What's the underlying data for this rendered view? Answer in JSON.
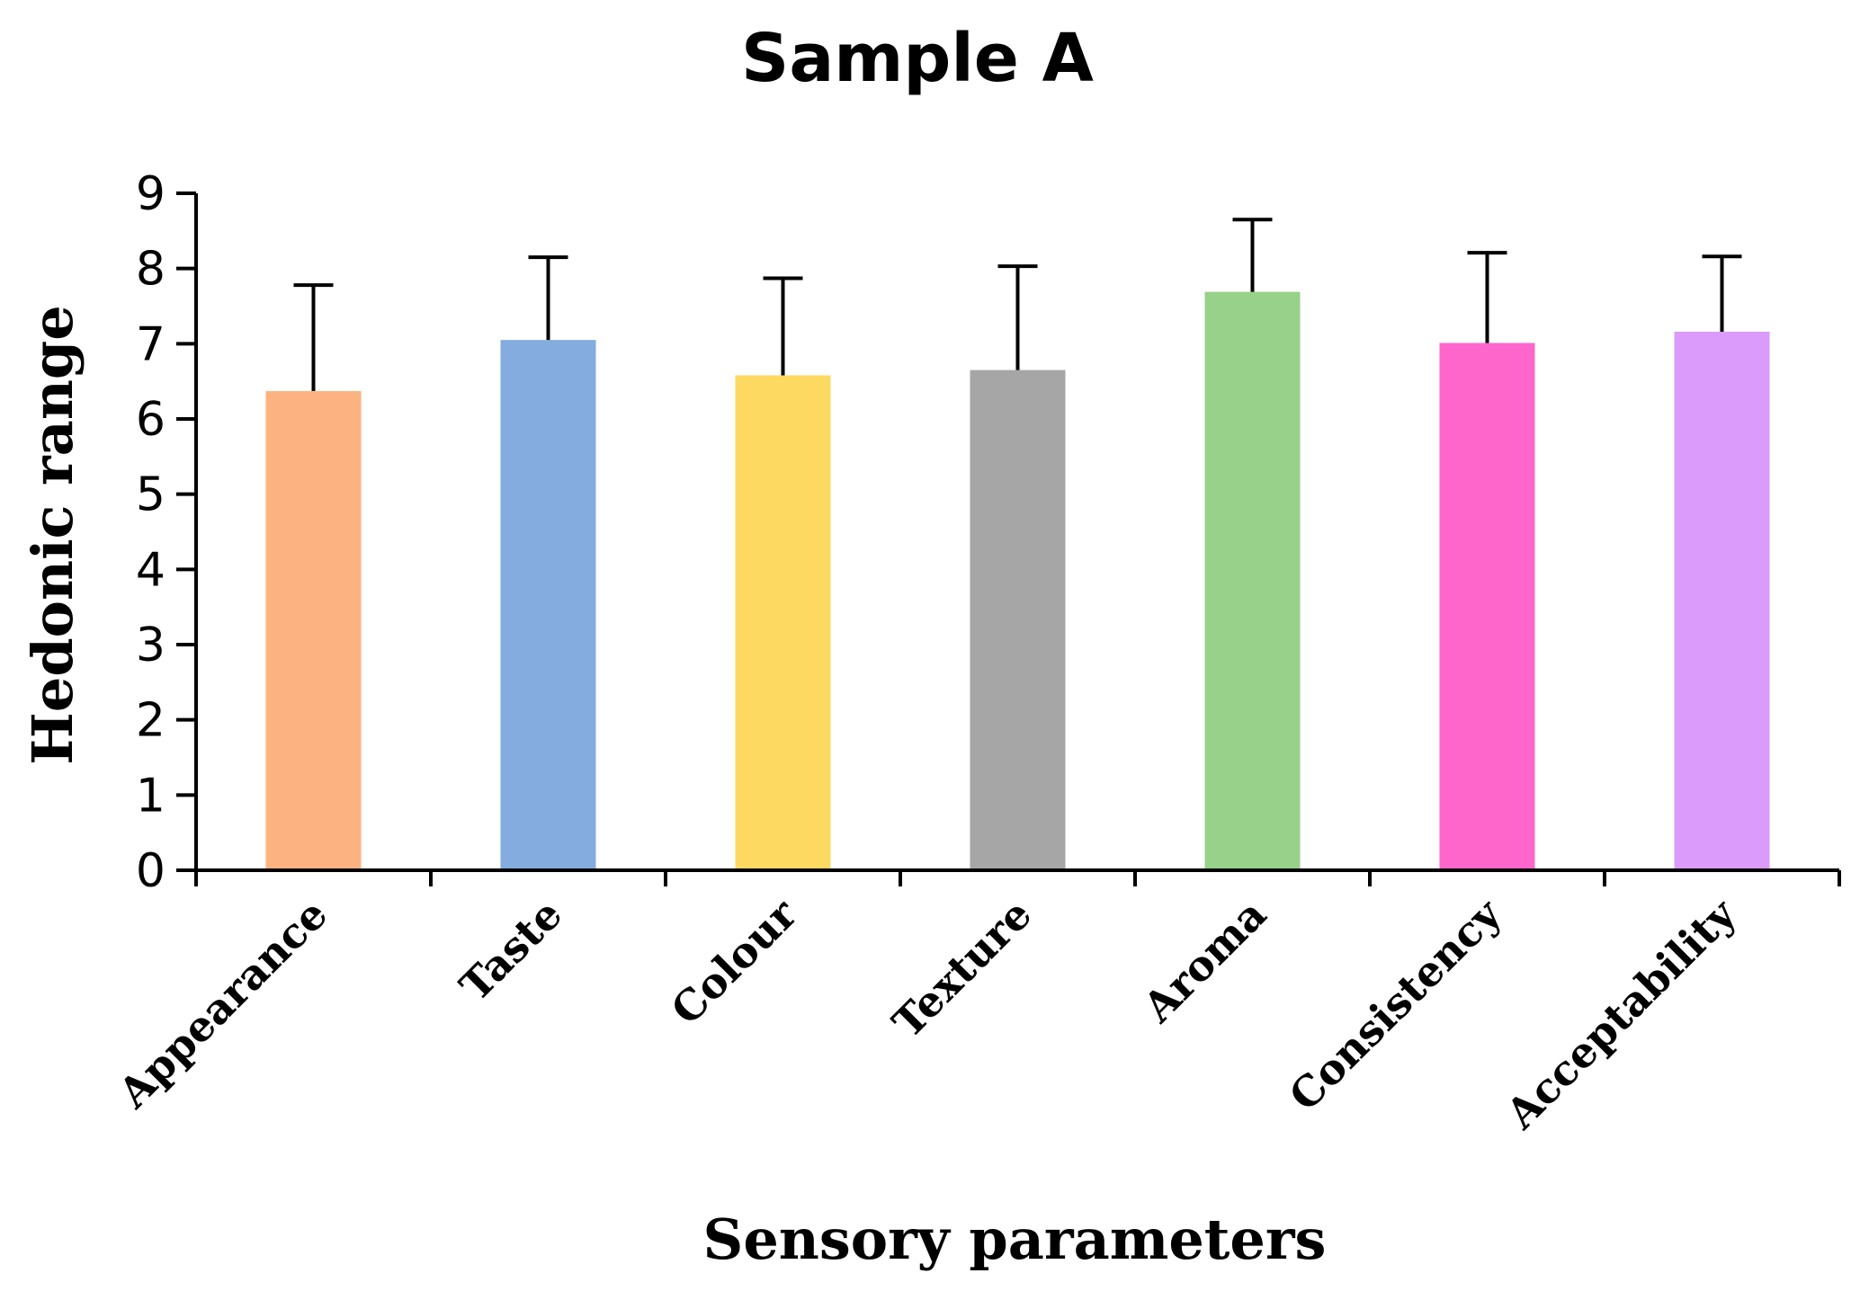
{
  "chart_data": {
    "type": "bar",
    "title": "Sample A",
    "xlabel": "Sensory parameters",
    "ylabel": "Hedonic range",
    "ylim": [
      0,
      9
    ],
    "yticks": [
      0,
      1,
      2,
      3,
      4,
      5,
      6,
      7,
      8,
      9
    ],
    "categories": [
      "Appearance",
      "Taste",
      "Colour",
      "Texture",
      "Aroma",
      "Consistency",
      "Acceptability"
    ],
    "values": [
      6.37,
      7.05,
      6.58,
      6.65,
      7.69,
      7.01,
      7.16
    ],
    "error_upper": [
      7.78,
      8.15,
      7.87,
      8.03,
      8.65,
      8.21,
      8.16
    ],
    "colors": [
      "#FDB381",
      "#84ACDE",
      "#FED961",
      "#A6A6A6",
      "#97D18A",
      "#FF66CC",
      "#DB9BFB"
    ],
    "grid": false,
    "legend": "none"
  }
}
